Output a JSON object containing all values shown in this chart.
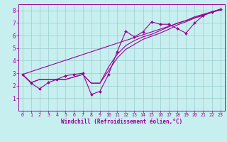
{
  "bg_color": "#c8efef",
  "line_color": "#990099",
  "grid_color": "#99cccc",
  "xlabel": "Windchill (Refroidissement éolien,°C)",
  "xlabel_color": "#990099",
  "tick_color": "#990099",
  "xlim": [
    -0.5,
    23.5
  ],
  "ylim": [
    0,
    8.5
  ],
  "xticks": [
    0,
    1,
    2,
    3,
    4,
    5,
    6,
    7,
    8,
    9,
    10,
    11,
    12,
    13,
    14,
    15,
    16,
    17,
    18,
    19,
    20,
    21,
    22,
    23
  ],
  "yticks": [
    1,
    2,
    3,
    4,
    5,
    6,
    7,
    8
  ],
  "jagged_x": [
    0,
    1,
    2,
    3,
    4,
    5,
    6,
    7,
    8,
    9,
    10,
    11,
    12,
    13,
    14,
    15,
    16,
    17,
    18,
    19,
    20,
    21,
    22,
    23
  ],
  "jagged_y": [
    2.9,
    2.2,
    1.75,
    2.25,
    2.5,
    2.8,
    2.9,
    3.0,
    1.3,
    1.55,
    2.9,
    4.7,
    6.35,
    5.9,
    6.3,
    7.1,
    6.9,
    6.9,
    6.55,
    6.2,
    7.0,
    7.6,
    7.9,
    8.1
  ],
  "smooth1_x": [
    0,
    1,
    2,
    3,
    4,
    5,
    6,
    7,
    8,
    9,
    10,
    11,
    12,
    13,
    14,
    15,
    16,
    17,
    18,
    19,
    20,
    21,
    22,
    23
  ],
  "smooth1_y": [
    2.9,
    2.25,
    2.5,
    2.5,
    2.5,
    2.5,
    2.7,
    2.9,
    2.2,
    2.2,
    3.5,
    4.5,
    5.2,
    5.6,
    5.9,
    6.1,
    6.4,
    6.7,
    7.0,
    7.2,
    7.5,
    7.7,
    7.9,
    8.1
  ],
  "smooth2_x": [
    0,
    1,
    2,
    3,
    4,
    5,
    6,
    7,
    8,
    9,
    10,
    11,
    12,
    13,
    14,
    15,
    16,
    17,
    18,
    19,
    20,
    21,
    22,
    23
  ],
  "smooth2_y": [
    2.9,
    2.25,
    2.5,
    2.5,
    2.5,
    2.5,
    2.7,
    2.9,
    2.2,
    2.2,
    3.2,
    4.2,
    4.9,
    5.3,
    5.7,
    5.95,
    6.2,
    6.5,
    6.85,
    7.1,
    7.4,
    7.6,
    7.85,
    8.05
  ],
  "line_x": [
    0,
    23
  ],
  "line_y": [
    2.9,
    8.1
  ]
}
